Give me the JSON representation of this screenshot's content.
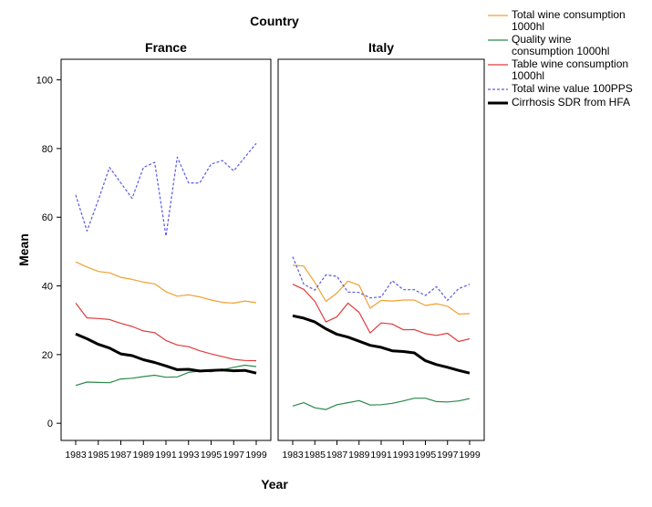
{
  "chart_data": {
    "type": "line",
    "title": "Country",
    "xlabel": "Year",
    "ylabel": "Mean",
    "ylim": [
      -5,
      106
    ],
    "yticks": [
      0,
      20,
      40,
      60,
      80,
      100
    ],
    "x": [
      1983,
      1984,
      1985,
      1986,
      1987,
      1988,
      1989,
      1990,
      1991,
      1992,
      1993,
      1994,
      1995,
      1996,
      1997,
      1998,
      1999
    ],
    "xtick_labels": [
      "1983",
      "1985",
      "1987",
      "1989",
      "1991",
      "1993",
      "1995",
      "1997",
      "1999"
    ],
    "series_meta": [
      {
        "name": "Total wine consumption 1000hl",
        "legend": [
          "Total wine consumption",
          "1000hl"
        ],
        "color": "#f0a030",
        "style": "solid",
        "width": 1.2
      },
      {
        "name": "Quality wine consumption 1000hl",
        "legend": [
          "Quality wine",
          "consumption 1000hl"
        ],
        "color": "#2a8a4a",
        "style": "solid",
        "width": 1.2
      },
      {
        "name": "Table wine consumption 1000hl",
        "legend": [
          "Table wine consumption",
          "1000hl"
        ],
        "color": "#e03a3a",
        "style": "solid",
        "width": 1.2
      },
      {
        "name": "Total wine value 100PPS",
        "legend": [
          "Total wine value 100PPS"
        ],
        "color": "#5a5ae6",
        "style": "dashed",
        "width": 1.2
      },
      {
        "name": "Cirrhosis SDR from HFA",
        "legend": [
          "Cirrhosis SDR from HFA"
        ],
        "color": "#000000",
        "style": "solid",
        "width": 3
      }
    ],
    "panels": [
      {
        "name": "France",
        "series": [
          {
            "name": "Total wine consumption 1000hl",
            "values": [
              47,
              45.5,
              44.2,
              43.8,
              42.5,
              41.9,
              41.1,
              40.6,
              38.3,
              37,
              37.4,
              36.8,
              35.9,
              35.2,
              35,
              35.6,
              35.1
            ]
          },
          {
            "name": "Quality wine consumption 1000hl",
            "values": [
              11,
              12,
              11.9,
              11.8,
              12.9,
              13.1,
              13.6,
              14,
              13.4,
              13.5,
              14.8,
              15.2,
              15,
              15.6,
              16.3,
              16.9,
              16.5
            ]
          },
          {
            "name": "Table wine consumption 1000hl",
            "values": [
              35,
              30.7,
              30.5,
              30.2,
              29.1,
              28.2,
              26.9,
              26.4,
              24.1,
              22.8,
              22.3,
              21.1,
              20.2,
              19.4,
              18.6,
              18.3,
              18.2
            ]
          },
          {
            "name": "Total wine value 100PPS",
            "values": [
              66.5,
              56,
              65,
              74.5,
              70,
              65.5,
              74.5,
              76,
              54.5,
              77.5,
              70,
              70,
              75.5,
              76.5,
              73.5,
              77.5,
              81.5
            ]
          },
          {
            "name": "Cirrhosis SDR from HFA",
            "values": [
              26,
              24.6,
              23,
              21.9,
              20.2,
              19.7,
              18.5,
              17.7,
              16.7,
              15.6,
              15.7,
              15.2,
              15.4,
              15.5,
              15.3,
              15.4,
              14.6
            ]
          }
        ]
      },
      {
        "name": "Italy",
        "series": [
          {
            "name": "Total wine consumption 1000hl",
            "values": [
              46,
              45.8,
              41,
              35.5,
              37.9,
              41.4,
              40.2,
              33.5,
              35.8,
              35.6,
              35.9,
              35.9,
              34.3,
              34.8,
              34.1,
              31.8,
              31.9
            ]
          },
          {
            "name": "Quality wine consumption 1000hl",
            "values": [
              5,
              6,
              4.5,
              4,
              5.4,
              6,
              6.6,
              5.3,
              5.4,
              5.8,
              6.5,
              7.3,
              7.3,
              6.3,
              6.2,
              6.5,
              7.2
            ]
          },
          {
            "name": "Table wine consumption 1000hl",
            "values": [
              40.5,
              39,
              35.5,
              29.5,
              31,
              35,
              32.3,
              26.3,
              29.2,
              28.9,
              27.2,
              27.3,
              26.1,
              25.6,
              26.2,
              23.8,
              24.6
            ]
          },
          {
            "name": "Total wine value 100PPS",
            "values": [
              48.5,
              40.5,
              38.8,
              43.2,
              42.8,
              38.2,
              38.1,
              36.5,
              36.8,
              41.5,
              38.9,
              38.9,
              37.2,
              39.8,
              35.8,
              39.2,
              40.5
            ]
          },
          {
            "name": "Cirrhosis SDR from HFA",
            "values": [
              31.3,
              30.6,
              29.5,
              27.5,
              25.9,
              25.1,
              23.9,
              22.7,
              22.1,
              21.1,
              20.9,
              20.5,
              18.2,
              17.1,
              16.3,
              15.4,
              14.6
            ]
          }
        ]
      }
    ]
  }
}
